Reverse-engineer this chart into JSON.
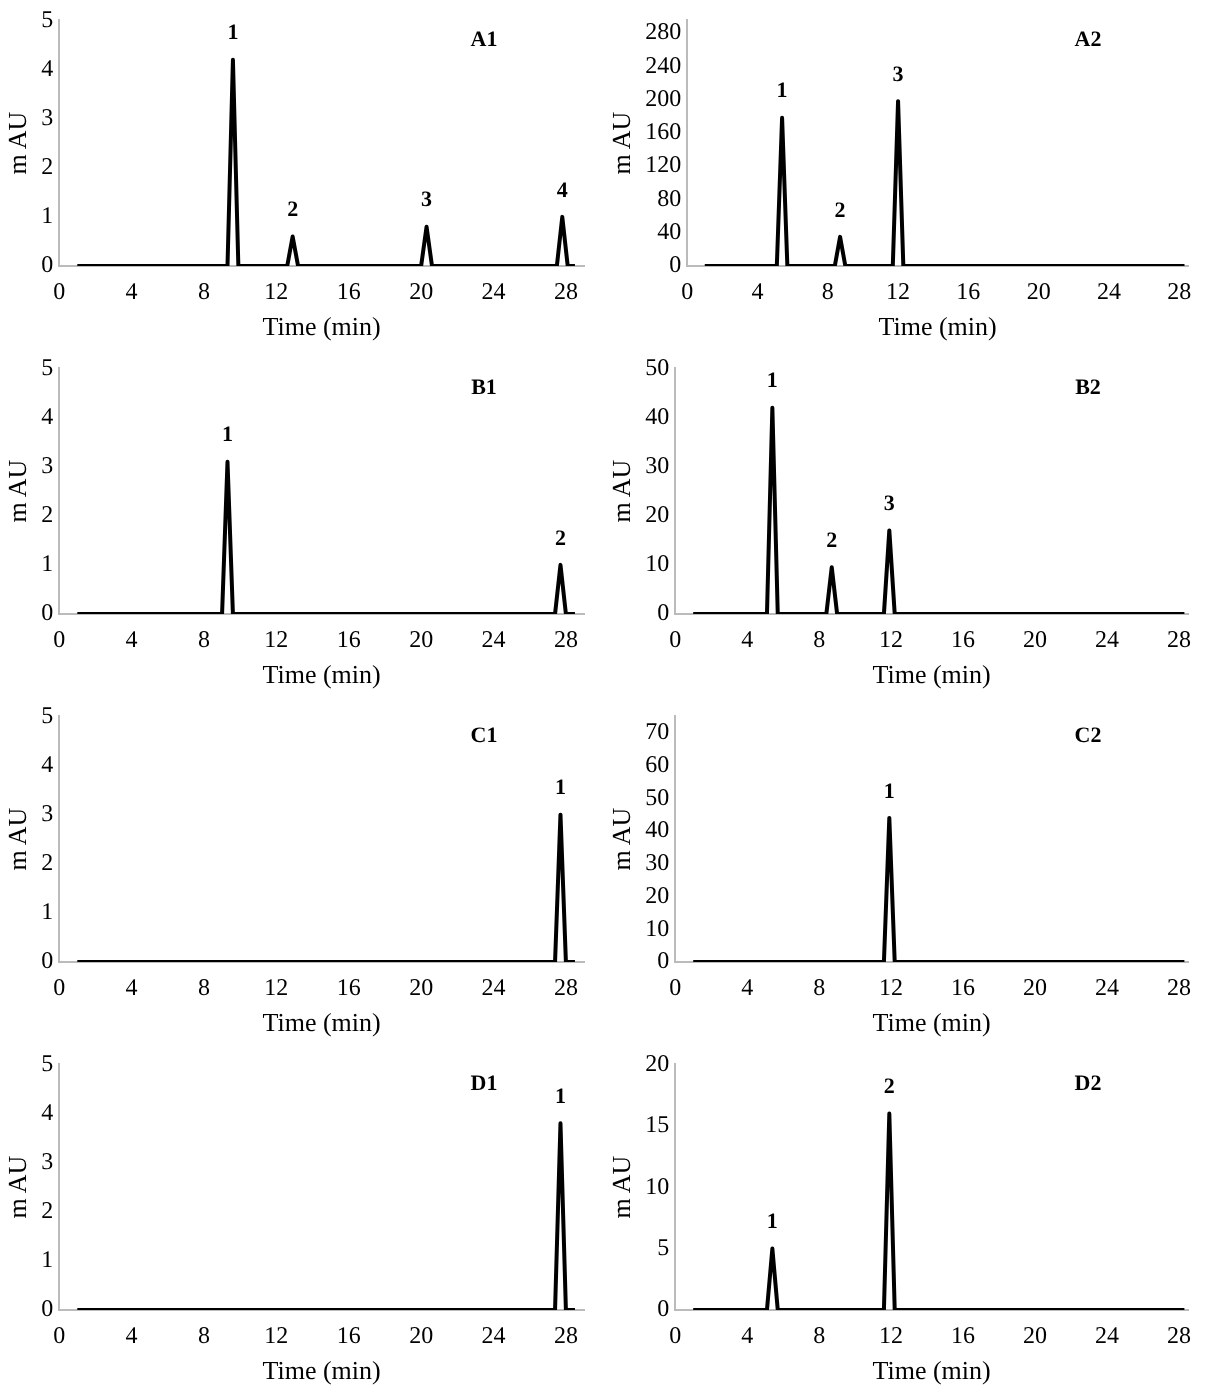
{
  "chart_data": [
    {
      "type": "line",
      "title": "A1",
      "xlabel": "Time (min)",
      "ylabel": "m AU",
      "xlim": [
        0,
        29
      ],
      "xticks": [
        0,
        4,
        8,
        12,
        16,
        20,
        24,
        28
      ],
      "ylim": [
        0,
        5
      ],
      "yticks": [
        0,
        1,
        2,
        3,
        4,
        5
      ],
      "grid": false,
      "marker": "none",
      "color": "#000000",
      "x": [
        1,
        9.3,
        9.6,
        9.9,
        12.6,
        12.9,
        13.2,
        20.0,
        20.3,
        20.6,
        27.5,
        27.8,
        28.1,
        28.5
      ],
      "values": [
        0,
        0,
        4.2,
        0,
        0,
        0.6,
        0,
        0,
        0.8,
        0,
        0,
        1.0,
        0,
        0
      ],
      "annotations": [
        {
          "text": "1",
          "x": 9.6,
          "y": 4.2
        },
        {
          "text": "2",
          "x": 12.9,
          "y": 0.6
        },
        {
          "text": "3",
          "x": 20.3,
          "y": 0.8
        },
        {
          "text": "4",
          "x": 27.8,
          "y": 1.0
        }
      ]
    },
    {
      "type": "line",
      "title": "A2",
      "xlabel": "Time (min)",
      "ylabel": "m AU",
      "xlim": [
        0,
        28.5
      ],
      "xticks": [
        0,
        4,
        8,
        12,
        16,
        20,
        24,
        28
      ],
      "ylim": [
        0,
        295
      ],
      "yticks": [
        0,
        40,
        80,
        120,
        160,
        200,
        240,
        280
      ],
      "grid": false,
      "marker": "none",
      "color": "#000000",
      "x": [
        1,
        5.1,
        5.4,
        5.7,
        8.4,
        8.7,
        9.0,
        11.7,
        12.0,
        12.3,
        28.3
      ],
      "values": [
        0,
        0,
        178,
        0,
        0,
        35,
        0,
        0,
        198,
        0,
        0
      ],
      "annotations": [
        {
          "text": "1",
          "x": 5.4,
          "y": 178
        },
        {
          "text": "2",
          "x": 8.7,
          "y": 35
        },
        {
          "text": "3",
          "x": 12.0,
          "y": 198
        }
      ]
    },
    {
      "type": "line",
      "title": "B1",
      "xlabel": "Time (min)",
      "ylabel": "m AU",
      "xlim": [
        0,
        29
      ],
      "xticks": [
        0,
        4,
        8,
        12,
        16,
        20,
        24,
        28
      ],
      "ylim": [
        0,
        5
      ],
      "yticks": [
        0,
        1,
        2,
        3,
        4,
        5
      ],
      "grid": false,
      "marker": "none",
      "color": "#000000",
      "x": [
        1,
        9.0,
        9.3,
        9.6,
        27.4,
        27.7,
        28.0,
        28.5
      ],
      "values": [
        0,
        0,
        3.1,
        0,
        0,
        1.0,
        0,
        0
      ],
      "annotations": [
        {
          "text": "1",
          "x": 9.3,
          "y": 3.1
        },
        {
          "text": "2",
          "x": 27.7,
          "y": 1.0
        }
      ]
    },
    {
      "type": "line",
      "title": "B2",
      "xlabel": "Time (min)",
      "ylabel": "m AU",
      "xlim": [
        0,
        28.5
      ],
      "xticks": [
        0,
        4,
        8,
        12,
        16,
        20,
        24,
        28
      ],
      "ylim": [
        0,
        50
      ],
      "yticks": [
        0,
        10,
        20,
        30,
        40,
        50
      ],
      "grid": false,
      "marker": "none",
      "color": "#000000",
      "x": [
        1,
        5.1,
        5.4,
        5.7,
        8.4,
        8.7,
        9.0,
        11.6,
        11.9,
        12.2,
        28.3
      ],
      "values": [
        0,
        0,
        42,
        0,
        0,
        9.5,
        0,
        0,
        17,
        0,
        0
      ],
      "annotations": [
        {
          "text": "1",
          "x": 5.4,
          "y": 42
        },
        {
          "text": "2",
          "x": 8.7,
          "y": 9.5
        },
        {
          "text": "3",
          "x": 11.9,
          "y": 17
        }
      ]
    },
    {
      "type": "line",
      "title": "C1",
      "xlabel": "Time (min)",
      "ylabel": "m AU",
      "xlim": [
        0,
        29
      ],
      "xticks": [
        0,
        4,
        8,
        12,
        16,
        20,
        24,
        28
      ],
      "ylim": [
        0,
        5
      ],
      "yticks": [
        0,
        1,
        2,
        3,
        4,
        5
      ],
      "grid": false,
      "marker": "none",
      "color": "#000000",
      "x": [
        1,
        27.4,
        27.7,
        28.0,
        28.5
      ],
      "values": [
        0,
        0,
        3.0,
        0,
        0
      ],
      "annotations": [
        {
          "text": "1",
          "x": 27.7,
          "y": 3.0
        }
      ]
    },
    {
      "type": "line",
      "title": "C2",
      "xlabel": "Time (min)",
      "ylabel": "m AU",
      "xlim": [
        0,
        28.5
      ],
      "xticks": [
        0,
        4,
        8,
        12,
        16,
        20,
        24,
        28
      ],
      "ylim": [
        0,
        75
      ],
      "yticks": [
        0,
        10,
        20,
        30,
        40,
        50,
        60,
        70
      ],
      "grid": false,
      "marker": "none",
      "color": "#000000",
      "x": [
        1,
        11.6,
        11.9,
        12.2,
        28.3
      ],
      "values": [
        0,
        0,
        44,
        0,
        0
      ],
      "annotations": [
        {
          "text": "1",
          "x": 11.9,
          "y": 44
        }
      ]
    },
    {
      "type": "line",
      "title": "D1",
      "xlabel": "Time (min)",
      "ylabel": "m AU",
      "xlim": [
        0,
        29
      ],
      "xticks": [
        0,
        4,
        8,
        12,
        16,
        20,
        24,
        28
      ],
      "ylim": [
        0,
        5
      ],
      "yticks": [
        0,
        1,
        2,
        3,
        4,
        5
      ],
      "grid": false,
      "marker": "none",
      "color": "#000000",
      "x": [
        1,
        27.4,
        27.7,
        28.0,
        28.5
      ],
      "values": [
        0,
        0,
        3.8,
        0,
        0
      ],
      "annotations": [
        {
          "text": "1",
          "x": 27.7,
          "y": 3.8
        }
      ]
    },
    {
      "type": "line",
      "title": "D2",
      "xlabel": "Time (min)",
      "ylabel": "m AU",
      "xlim": [
        0,
        28.5
      ],
      "xticks": [
        0,
        4,
        8,
        12,
        16,
        20,
        24,
        28
      ],
      "ylim": [
        0,
        20
      ],
      "yticks": [
        0,
        5,
        10,
        15,
        20
      ],
      "grid": false,
      "marker": "none",
      "color": "#000000",
      "x": [
        1,
        5.1,
        5.4,
        5.7,
        11.6,
        11.9,
        12.2,
        28.3
      ],
      "values": [
        0,
        0,
        5,
        0,
        0,
        16,
        0,
        0
      ],
      "annotations": [
        {
          "text": "1",
          "x": 5.4,
          "y": 5
        },
        {
          "text": "2",
          "x": 11.9,
          "y": 16
        }
      ]
    }
  ]
}
